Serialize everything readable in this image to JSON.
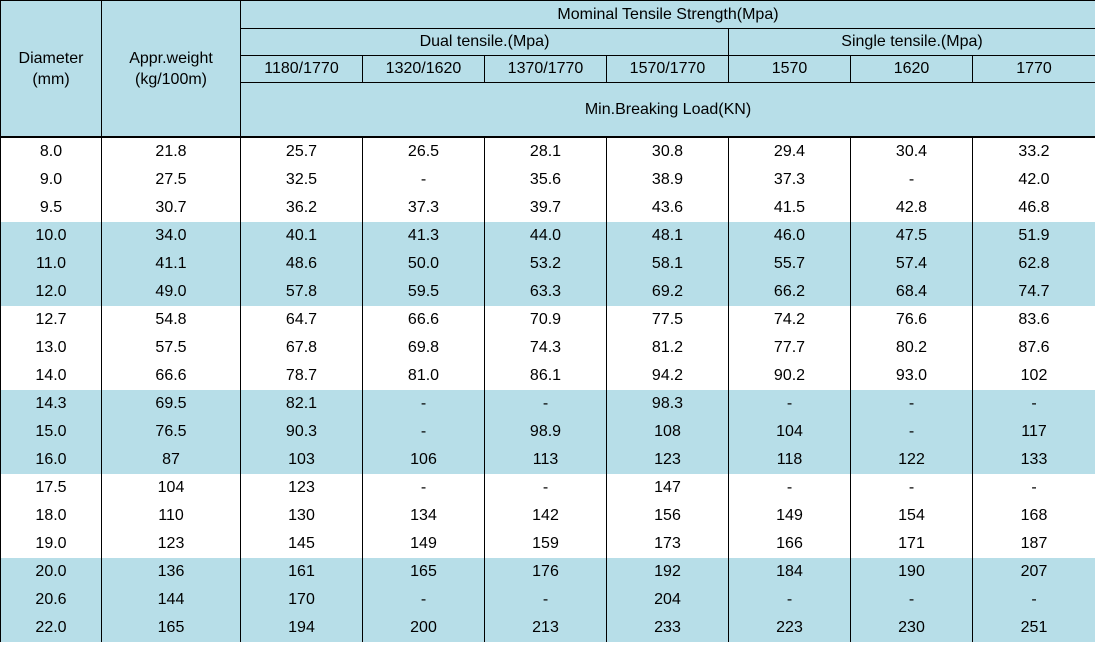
{
  "table": {
    "header": {
      "diameter": [
        "Diameter",
        "(mm)"
      ],
      "weight": [
        "Appr.weight",
        "(kg/100m)"
      ],
      "strength": "Mominal Tensile Strength(Mpa)",
      "dual": "Dual tensile.(Mpa)",
      "single": "Single tensile.(Mpa)",
      "grades": [
        "1180/1770",
        "1320/1620",
        "1370/1770",
        "1570/1770",
        "1570",
        "1620",
        "1770"
      ],
      "load": "Min.Breaking Load(KN)"
    },
    "rows": [
      [
        "8.0",
        "21.8",
        "25.7",
        "26.5",
        "28.1",
        "30.8",
        "29.4",
        "30.4",
        "33.2"
      ],
      [
        "9.0",
        "27.5",
        "32.5",
        "-",
        "35.6",
        "38.9",
        "37.3",
        "-",
        "42.0"
      ],
      [
        "9.5",
        "30.7",
        "36.2",
        "37.3",
        "39.7",
        "43.6",
        "41.5",
        "42.8",
        "46.8"
      ],
      [
        "10.0",
        "34.0",
        "40.1",
        "41.3",
        "44.0",
        "48.1",
        "46.0",
        "47.5",
        "51.9"
      ],
      [
        "11.0",
        "41.1",
        "48.6",
        "50.0",
        "53.2",
        "58.1",
        "55.7",
        "57.4",
        "62.8"
      ],
      [
        "12.0",
        "49.0",
        "57.8",
        "59.5",
        "63.3",
        "69.2",
        "66.2",
        "68.4",
        "74.7"
      ],
      [
        "12.7",
        "54.8",
        "64.7",
        "66.6",
        "70.9",
        "77.5",
        "74.2",
        "76.6",
        "83.6"
      ],
      [
        "13.0",
        "57.5",
        "67.8",
        "69.8",
        "74.3",
        "81.2",
        "77.7",
        "80.2",
        "87.6"
      ],
      [
        "14.0",
        "66.6",
        "78.7",
        "81.0",
        "86.1",
        "94.2",
        "90.2",
        "93.0",
        "102"
      ],
      [
        "14.3",
        "69.5",
        "82.1",
        "-",
        "-",
        "98.3",
        "-",
        "-",
        "-"
      ],
      [
        "15.0",
        "76.5",
        "90.3",
        "-",
        "98.9",
        "108",
        "104",
        "-",
        "117"
      ],
      [
        "16.0",
        "87",
        "103",
        "106",
        "113",
        "123",
        "118",
        "122",
        "133"
      ],
      [
        "17.5",
        "104",
        "123",
        "-",
        "-",
        "147",
        "-",
        "-",
        "-"
      ],
      [
        "18.0",
        "110",
        "130",
        "134",
        "142",
        "156",
        "149",
        "154",
        "168"
      ],
      [
        "19.0",
        "123",
        "145",
        "149",
        "159",
        "173",
        "166",
        "171",
        "187"
      ],
      [
        "20.0",
        "136",
        "161",
        "165",
        "176",
        "192",
        "184",
        "190",
        "207"
      ],
      [
        "20.6",
        "144",
        "170",
        "-",
        "-",
        "204",
        "-",
        "-",
        "-"
      ],
      [
        "22.0",
        "165",
        "194",
        "200",
        "213",
        "233",
        "223",
        "230",
        "251"
      ]
    ]
  }
}
